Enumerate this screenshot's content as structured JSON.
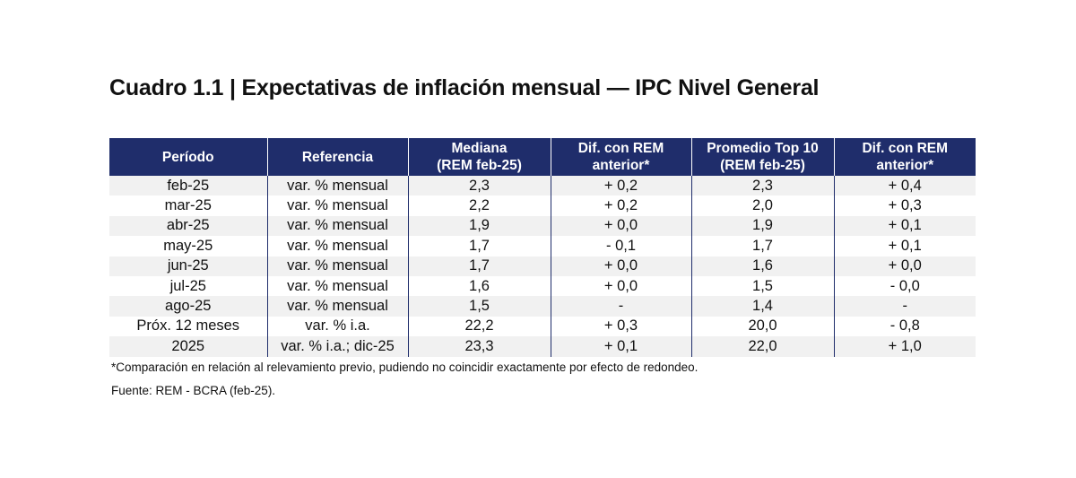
{
  "title": "Cuadro 1.1 | Expectativas de inflación mensual — IPC Nivel General",
  "table": {
    "headers": [
      [
        "Período"
      ],
      [
        "Referencia"
      ],
      [
        "Mediana",
        "(REM feb-25)"
      ],
      [
        "Dif. con REM",
        "anterior*"
      ],
      [
        "Promedio Top 10",
        "(REM feb-25)"
      ],
      [
        "Dif. con REM",
        "anterior*"
      ]
    ],
    "rows": [
      [
        "feb-25",
        "var. % mensual",
        "2,3",
        "+ 0,2",
        "2,3",
        "+ 0,4"
      ],
      [
        "mar-25",
        "var. % mensual",
        "2,2",
        "+ 0,2",
        "2,0",
        "+ 0,3"
      ],
      [
        "abr-25",
        "var. % mensual",
        "1,9",
        "+ 0,0",
        "1,9",
        "+ 0,1"
      ],
      [
        "may-25",
        "var. % mensual",
        "1,7",
        "- 0,1",
        "1,7",
        "+ 0,1"
      ],
      [
        "jun-25",
        "var. % mensual",
        "1,7",
        "+ 0,0",
        "1,6",
        "+ 0,0"
      ],
      [
        "jul-25",
        "var. % mensual",
        "1,6",
        "+ 0,0",
        "1,5",
        "- 0,0"
      ],
      [
        "ago-25",
        "var. % mensual",
        "1,5",
        "-",
        "1,4",
        "-"
      ],
      [
        "Próx. 12 meses",
        "var. % i.a.",
        "22,2",
        "+ 0,3",
        "20,0",
        "- 0,8"
      ],
      [
        "2025",
        "var. % i.a.; dic-25",
        "23,3",
        "+ 0,1",
        "22,0",
        "+ 1,0"
      ]
    ]
  },
  "footnote": "*Comparación en relación al relevamiento previo, pudiendo no coincidir exactamente por efecto de redondeo.",
  "source": "Fuente: REM - BCRA (feb-25).",
  "colors": {
    "header_bg": "#1f2d6b",
    "header_text": "#ffffff",
    "row_stripe": "#f1f1f1"
  }
}
